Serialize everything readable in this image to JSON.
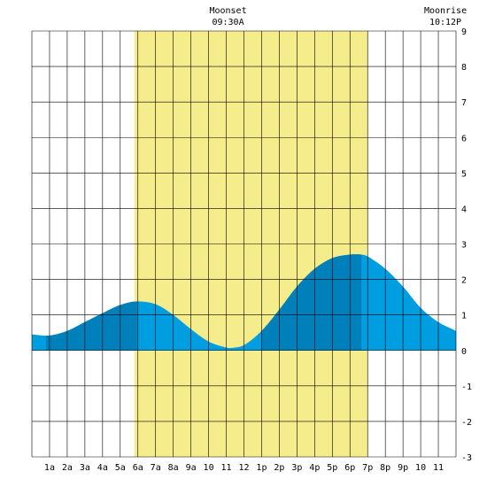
{
  "chart_data": {
    "type": "area",
    "title": "",
    "xlabel": "",
    "ylabel": "",
    "xlim": [
      0,
      24
    ],
    "ylim": [
      -3,
      9
    ],
    "y_ticks": [
      9,
      8,
      7,
      6,
      5,
      4,
      3,
      2,
      1,
      0,
      -1,
      -2,
      -3
    ],
    "x_ticks": [
      {
        "hour": 1,
        "label": "1a"
      },
      {
        "hour": 2,
        "label": "2a"
      },
      {
        "hour": 3,
        "label": "3a"
      },
      {
        "hour": 4,
        "label": "4a"
      },
      {
        "hour": 5,
        "label": "5a"
      },
      {
        "hour": 6,
        "label": "6a"
      },
      {
        "hour": 7,
        "label": "7a"
      },
      {
        "hour": 8,
        "label": "8a"
      },
      {
        "hour": 9,
        "label": "9a"
      },
      {
        "hour": 10,
        "label": "10"
      },
      {
        "hour": 11,
        "label": "11"
      },
      {
        "hour": 12,
        "label": "12"
      },
      {
        "hour": 13,
        "label": "1p"
      },
      {
        "hour": 14,
        "label": "2p"
      },
      {
        "hour": 15,
        "label": "3p"
      },
      {
        "hour": 16,
        "label": "4p"
      },
      {
        "hour": 17,
        "label": "5p"
      },
      {
        "hour": 18,
        "label": "6p"
      },
      {
        "hour": 19,
        "label": "7p"
      },
      {
        "hour": 20,
        "label": "8p"
      },
      {
        "hour": 21,
        "label": "9p"
      },
      {
        "hour": 22,
        "label": "10"
      },
      {
        "hour": 23,
        "label": "11"
      }
    ],
    "grid": true,
    "daylight": {
      "start": 5.8,
      "end": 19.0,
      "color": "#f5ec8c"
    },
    "series": [
      {
        "x": [
          0,
          1,
          2,
          3,
          4,
          5,
          5.95,
          7,
          8,
          9,
          10,
          11,
          11.3,
          12,
          13,
          14,
          15,
          16,
          17,
          18,
          18.65,
          19,
          20,
          21,
          22,
          23,
          24
        ],
        "values": [
          0.45,
          0.42,
          0.55,
          0.8,
          1.05,
          1.28,
          1.38,
          1.3,
          1.0,
          0.6,
          0.25,
          0.08,
          0.07,
          0.15,
          0.55,
          1.15,
          1.8,
          2.3,
          2.6,
          2.7,
          2.7,
          2.65,
          2.3,
          1.8,
          1.2,
          0.8,
          0.55
        ],
        "color": "#009ee0",
        "shade_color": "#0080bb",
        "shade_ranges": [
          [
            0.8,
            5.95
          ],
          [
            13.0,
            18.65
          ]
        ]
      }
    ],
    "annotations": [
      {
        "label": "Moonset",
        "time": "09:30A",
        "hour": 11.0
      },
      {
        "label": "Moonrise",
        "time": "10:12P",
        "hour": 23.3
      }
    ]
  }
}
